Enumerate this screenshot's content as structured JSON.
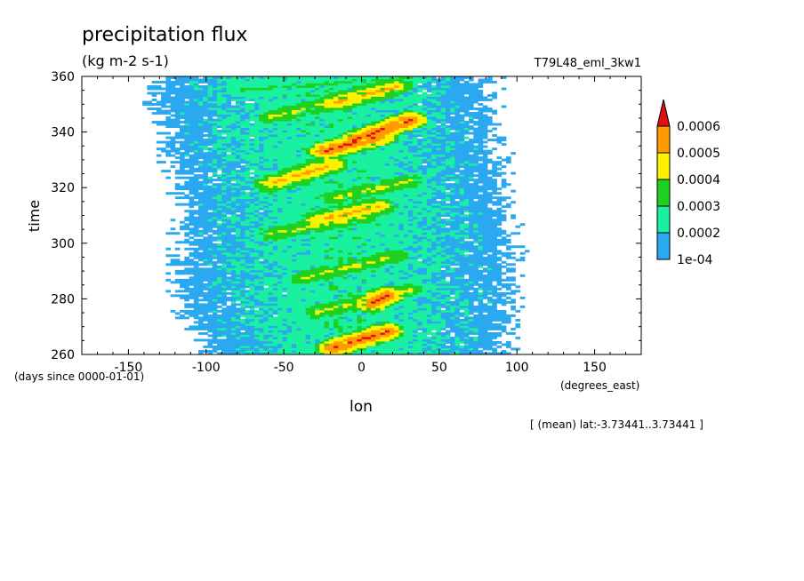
{
  "chart_data": {
    "type": "heatmap",
    "title": "precipitation flux",
    "units": "(kg m-2 s-1)",
    "dataset": "T79L48_eml_3kw1",
    "xlabel": "lon",
    "xunits": "(degrees_east)",
    "ylabel": "time",
    "yunits": "(days since 0000-01-01)",
    "note": "[ (mean) lat:-3.73441..3.73441 ]",
    "xlim": [
      -180,
      180
    ],
    "ylim": [
      260,
      360
    ],
    "x_ticks": [
      -150,
      -100,
      -50,
      0,
      50,
      100,
      150
    ],
    "x_tick_labels": [
      "-150",
      "-100",
      "-50",
      "0",
      "50",
      "100",
      "150"
    ],
    "y_ticks": [
      260,
      280,
      300,
      320,
      340,
      360
    ],
    "y_tick_labels": [
      "260",
      "280",
      "300",
      "320",
      "340",
      "360"
    ],
    "colorbar": {
      "levels": [
        0.0001,
        0.0002,
        0.0003,
        0.0004,
        0.0005,
        0.0006
      ],
      "level_labels": [
        "1e-04",
        "0.0002",
        "0.0003",
        "0.0004",
        "0.0005",
        "0.0006"
      ],
      "colors": [
        "#2aa8f0",
        "#19f0a0",
        "#20d020",
        "#fff000",
        "#ff9a00",
        "#e01010"
      ],
      "extend": "max"
    },
    "field_approx": {
      "active_band": [
        {
          "time": 260,
          "west": -100,
          "east": 90
        },
        {
          "time": 280,
          "west": -120,
          "east": 95
        },
        {
          "time": 300,
          "west": -120,
          "east": 95
        },
        {
          "time": 320,
          "west": -120,
          "east": 90
        },
        {
          "time": 340,
          "west": -130,
          "east": 85
        },
        {
          "time": 355,
          "west": -135,
          "east": 80
        }
      ],
      "streaks": [
        {
          "t0": 262,
          "lon0": -20,
          "t1": 268,
          "lon1": 15,
          "level": 0.0006
        },
        {
          "t0": 275,
          "lon0": -30,
          "t1": 283,
          "lon1": 30,
          "level": 0.0004
        },
        {
          "t0": 278,
          "lon0": 5,
          "t1": 281,
          "lon1": 15,
          "level": 0.0006
        },
        {
          "t0": 287,
          "lon0": -40,
          "t1": 295,
          "lon1": 20,
          "level": 0.0004
        },
        {
          "t0": 303,
          "lon0": -60,
          "t1": 309,
          "lon1": 0,
          "level": 0.0004
        },
        {
          "t0": 308,
          "lon0": -30,
          "t1": 313,
          "lon1": 10,
          "level": 0.0005
        },
        {
          "t0": 316,
          "lon0": -20,
          "t1": 322,
          "lon1": 30,
          "level": 0.0004
        },
        {
          "t0": 321,
          "lon0": -60,
          "t1": 328,
          "lon1": -20,
          "level": 0.0005
        },
        {
          "t0": 333,
          "lon0": -25,
          "t1": 338,
          "lon1": 10,
          "level": 0.0006
        },
        {
          "t0": 337,
          "lon0": -5,
          "t1": 344,
          "lon1": 30,
          "level": 0.0006
        },
        {
          "t0": 345,
          "lon0": -60,
          "t1": 352,
          "lon1": -10,
          "level": 0.0004
        },
        {
          "t0": 350,
          "lon0": -20,
          "t1": 356,
          "lon1": 20,
          "level": 0.0005
        },
        {
          "t0": 355,
          "lon0": -80,
          "t1": 359,
          "lon1": 30,
          "level": 0.0003
        }
      ]
    }
  }
}
